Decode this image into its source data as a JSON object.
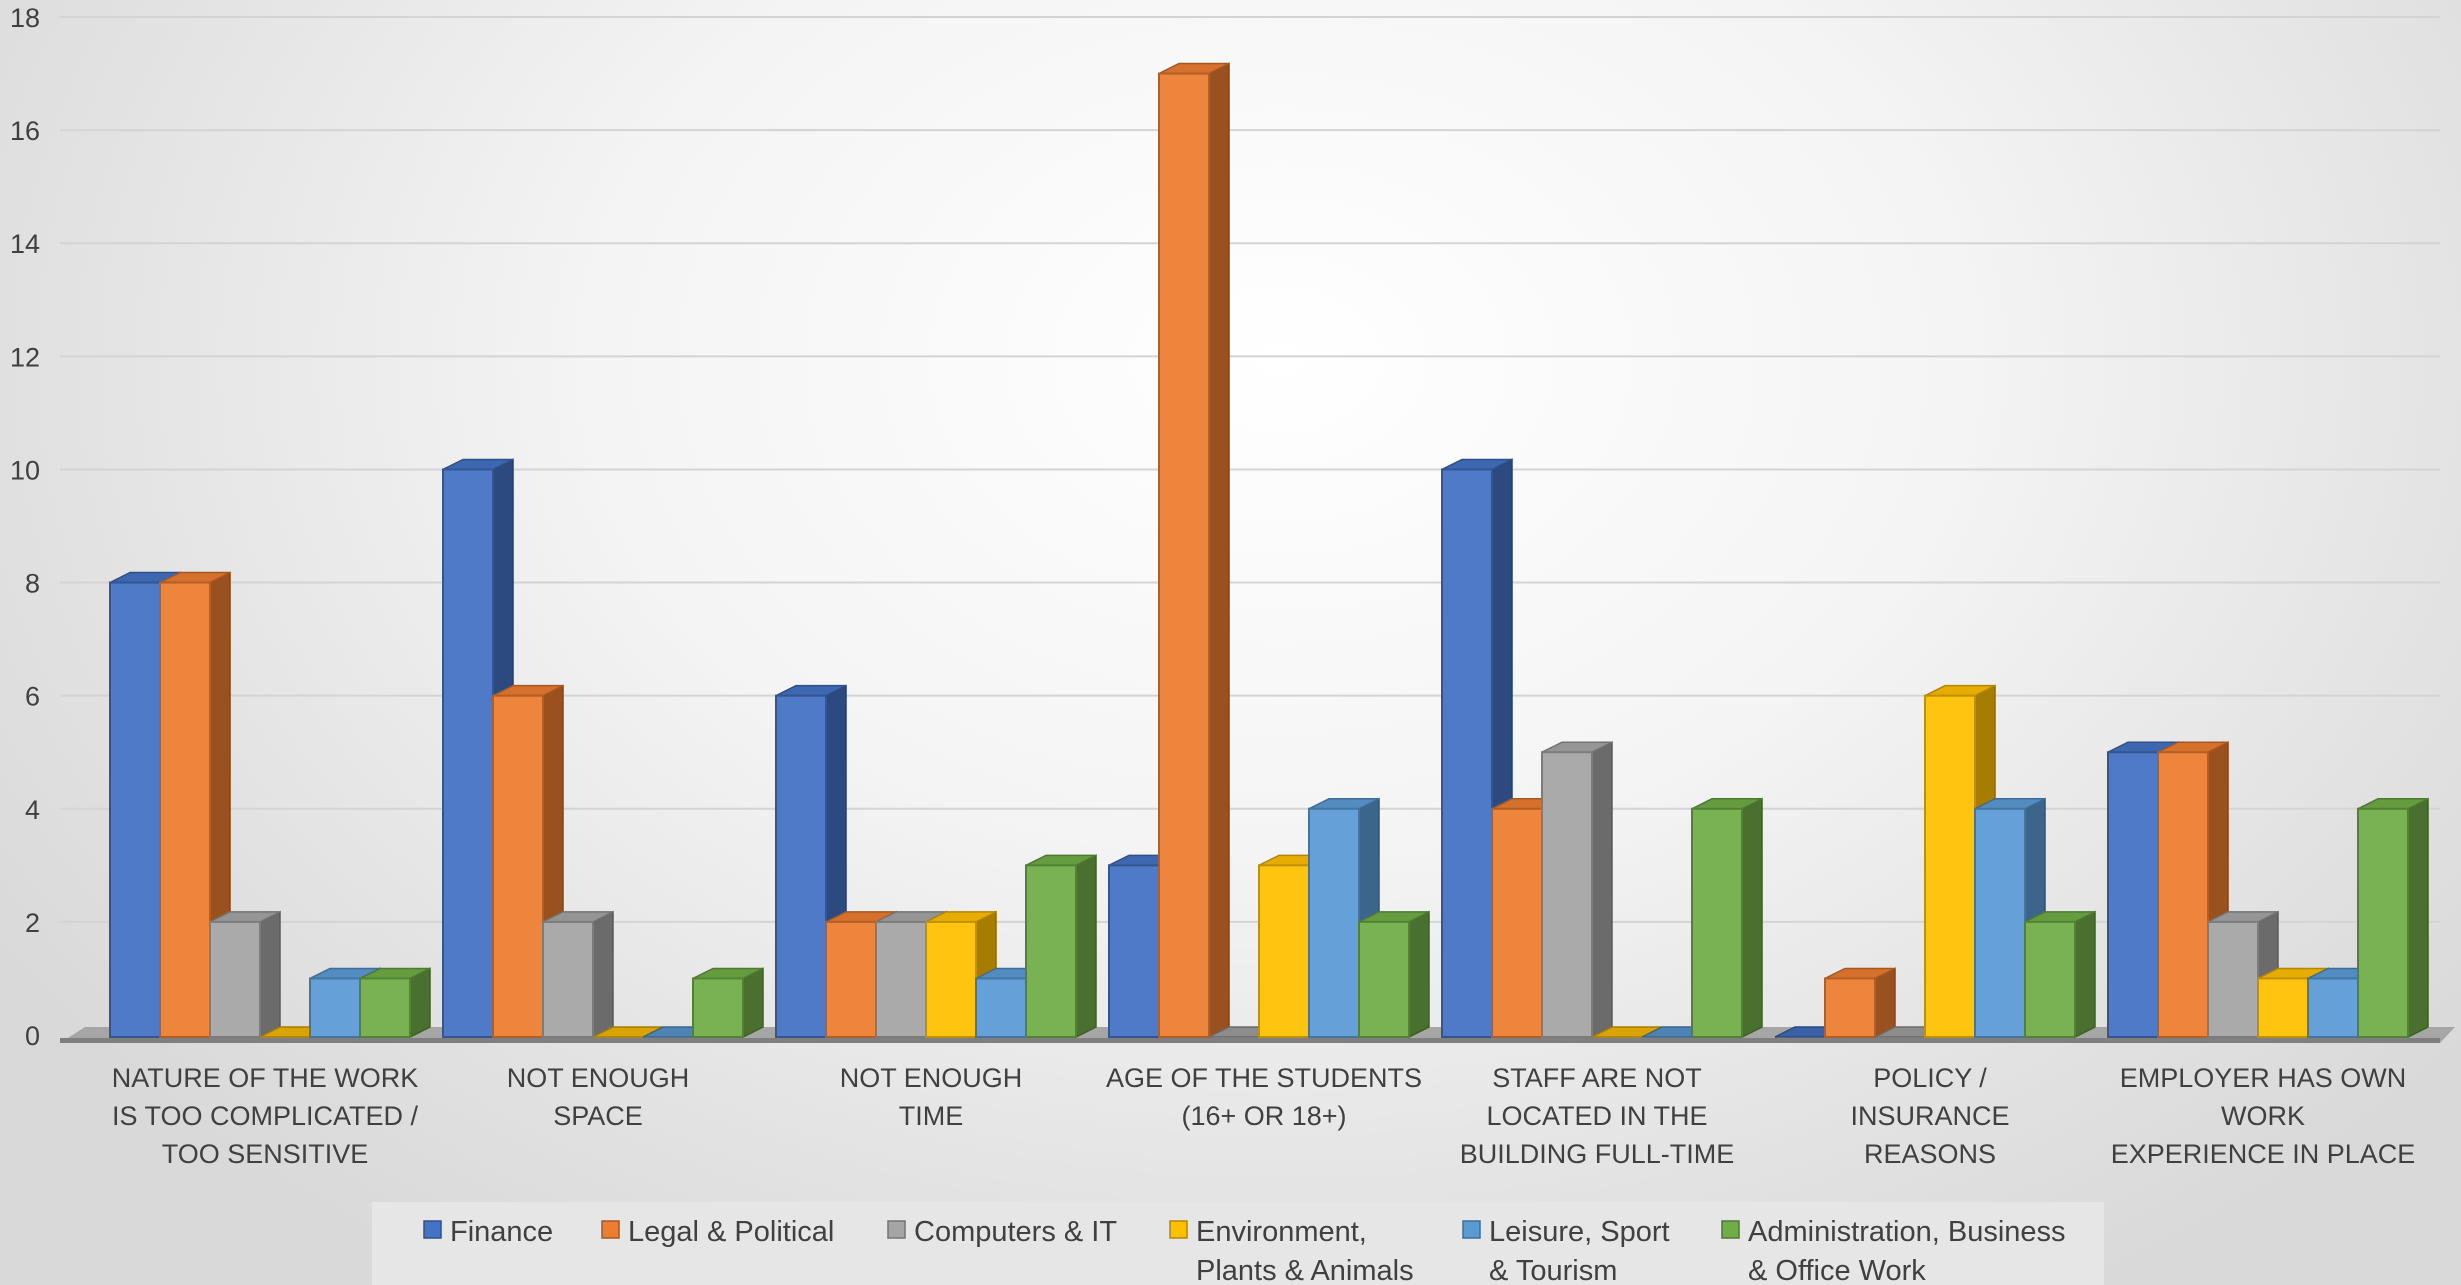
{
  "chart_data": {
    "type": "bar",
    "title": "",
    "xlabel": "",
    "ylabel": "",
    "ylim": [
      0,
      18
    ],
    "yticks": [
      "0",
      "2",
      "4",
      "6",
      "8",
      "10",
      "12",
      "14",
      "16",
      "18"
    ],
    "grid": true,
    "legend_position": "bottom",
    "categories": [
      [
        "NATURE OF THE WORK",
        "IS TOO COMPLICATED /",
        "TOO SENSITIVE"
      ],
      [
        "NOT ENOUGH",
        "SPACE"
      ],
      [
        "NOT ENOUGH",
        "TIME"
      ],
      [
        "AGE OF THE STUDENTS",
        "(16+ OR 18+)"
      ],
      [
        "STAFF ARE NOT",
        "LOCATED IN THE",
        "BUILDING FULL-TIME"
      ],
      [
        "POLICY /",
        "INSURANCE",
        "REASONS"
      ],
      [
        "EMPLOYER HAS OWN",
        "WORK",
        "EXPERIENCE IN PLACE"
      ]
    ],
    "series": [
      {
        "name": "Finance",
        "legend_lines": [
          "Finance"
        ],
        "color": "#4472C4",
        "values": [
          8,
          10,
          6,
          3,
          10,
          0,
          5
        ]
      },
      {
        "name": "Legal & Political",
        "legend_lines": [
          "Legal & Political"
        ],
        "color": "#ED7D31",
        "values": [
          8,
          6,
          2,
          17,
          4,
          1,
          5
        ]
      },
      {
        "name": "Computers & IT",
        "legend_lines": [
          "Computers & IT"
        ],
        "color": "#A5A5A5",
        "values": [
          2,
          2,
          2,
          0,
          5,
          0,
          2
        ]
      },
      {
        "name": "Environment, Plants & Animals",
        "legend_lines": [
          "Environment,",
          "Plants & Animals"
        ],
        "color": "#FFC000",
        "values": [
          0,
          0,
          2,
          3,
          0,
          6,
          1
        ]
      },
      {
        "name": "Leisure, Sport & Tourism",
        "legend_lines": [
          "Leisure, Sport",
          "& Tourism"
        ],
        "color": "#5B9BD5",
        "values": [
          1,
          0,
          1,
          4,
          0,
          4,
          1
        ]
      },
      {
        "name": "Administration, Business & Office Work",
        "legend_lines": [
          "Administration, Business",
          "& Office Work"
        ],
        "color": "#70AD47",
        "values": [
          1,
          1,
          3,
          2,
          4,
          2,
          4
        ]
      }
    ]
  }
}
